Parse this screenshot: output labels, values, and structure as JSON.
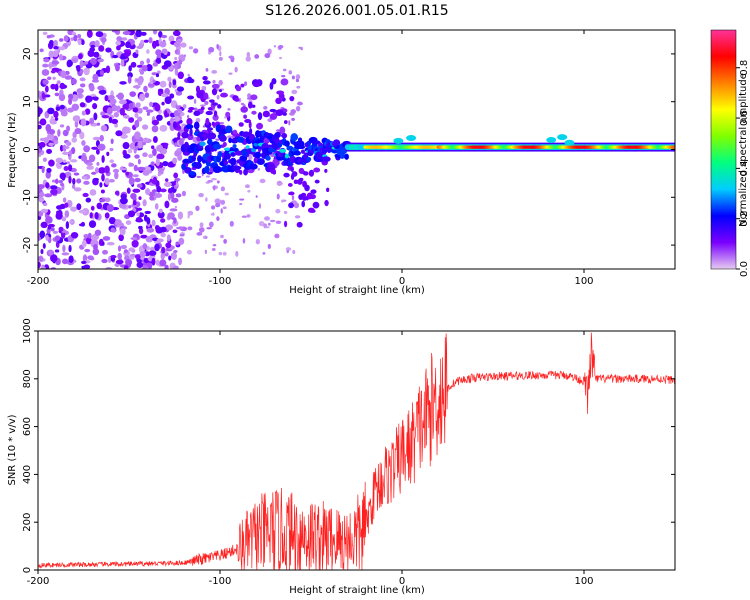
{
  "title": "S126.2026.001.05.01.R15",
  "chart_data": [
    {
      "type": "heatmap",
      "title": "S126.2026.001.05.01.R15",
      "xlabel": "Height of straight line (km)",
      "ylabel": "Frequency (Hz)",
      "xlim": [
        -200,
        150
      ],
      "ylim": [
        -25,
        25
      ],
      "xticks": [
        -200,
        -100,
        0,
        100
      ],
      "yticks": [
        -20,
        -10,
        0,
        10,
        20
      ],
      "colorbar": {
        "label": "Normalized spectral amplitude",
        "range": [
          0.0,
          0.95
        ],
        "ticks": [
          0.0,
          0.2,
          0.4,
          0.6,
          0.8
        ],
        "tick_labels": [
          "0.0",
          "0.2",
          "0.4",
          "0.6",
          "0.8"
        ],
        "colormap": [
          "#e6ccf2",
          "#7a00ff",
          "#0000ff",
          "#00ccff",
          "#00ff80",
          "#80ff00",
          "#ffff00",
          "#ff8000",
          "#ff0000",
          "#ff3399"
        ]
      },
      "features": [
        {
          "name": "scattered noise",
          "x_range": [
            -200,
            -120
          ],
          "freq_range": [
            -25,
            25
          ],
          "amplitude": 0.05
        },
        {
          "name": "diffuse blobs",
          "x_range": [
            -120,
            -60
          ],
          "freq_range": [
            -5,
            15
          ],
          "amplitude": 0.1
        },
        {
          "name": "broadened carrier",
          "x_range": [
            -120,
            -30
          ],
          "freq": 0,
          "amplitude": 0.25
        },
        {
          "name": "stable carrier line",
          "x_range": [
            -30,
            150
          ],
          "freq": 0.5,
          "amplitude": 0.9
        }
      ]
    },
    {
      "type": "line",
      "title": "",
      "xlabel": "Height of straight line (km)",
      "ylabel": "SNR (10 * v/v)",
      "xlim": [
        -200,
        150
      ],
      "ylim": [
        0,
        1000
      ],
      "xticks": [
        -200,
        -100,
        0,
        100
      ],
      "yticks": [
        0,
        200,
        400,
        600,
        800,
        1000
      ],
      "color": "#ff2020",
      "series": [
        {
          "name": "SNR",
          "x": [
            -200,
            -150,
            -120,
            -110,
            -100,
            -90,
            -80,
            -70,
            -60,
            -50,
            -40,
            -30,
            -25,
            -20,
            -15,
            -10,
            -5,
            0,
            5,
            10,
            15,
            20,
            25,
            30,
            40,
            50,
            60,
            70,
            80,
            90,
            95,
            100,
            102,
            104,
            106,
            110,
            120,
            130,
            140,
            150
          ],
          "y": [
            20,
            25,
            30,
            45,
            60,
            90,
            140,
            160,
            150,
            140,
            130,
            120,
            140,
            180,
            330,
            390,
            420,
            480,
            520,
            600,
            660,
            720,
            760,
            790,
            805,
            810,
            812,
            815,
            815,
            815,
            805,
            790,
            720,
            920,
            800,
            800,
            800,
            800,
            800,
            795
          ]
        }
      ]
    }
  ]
}
